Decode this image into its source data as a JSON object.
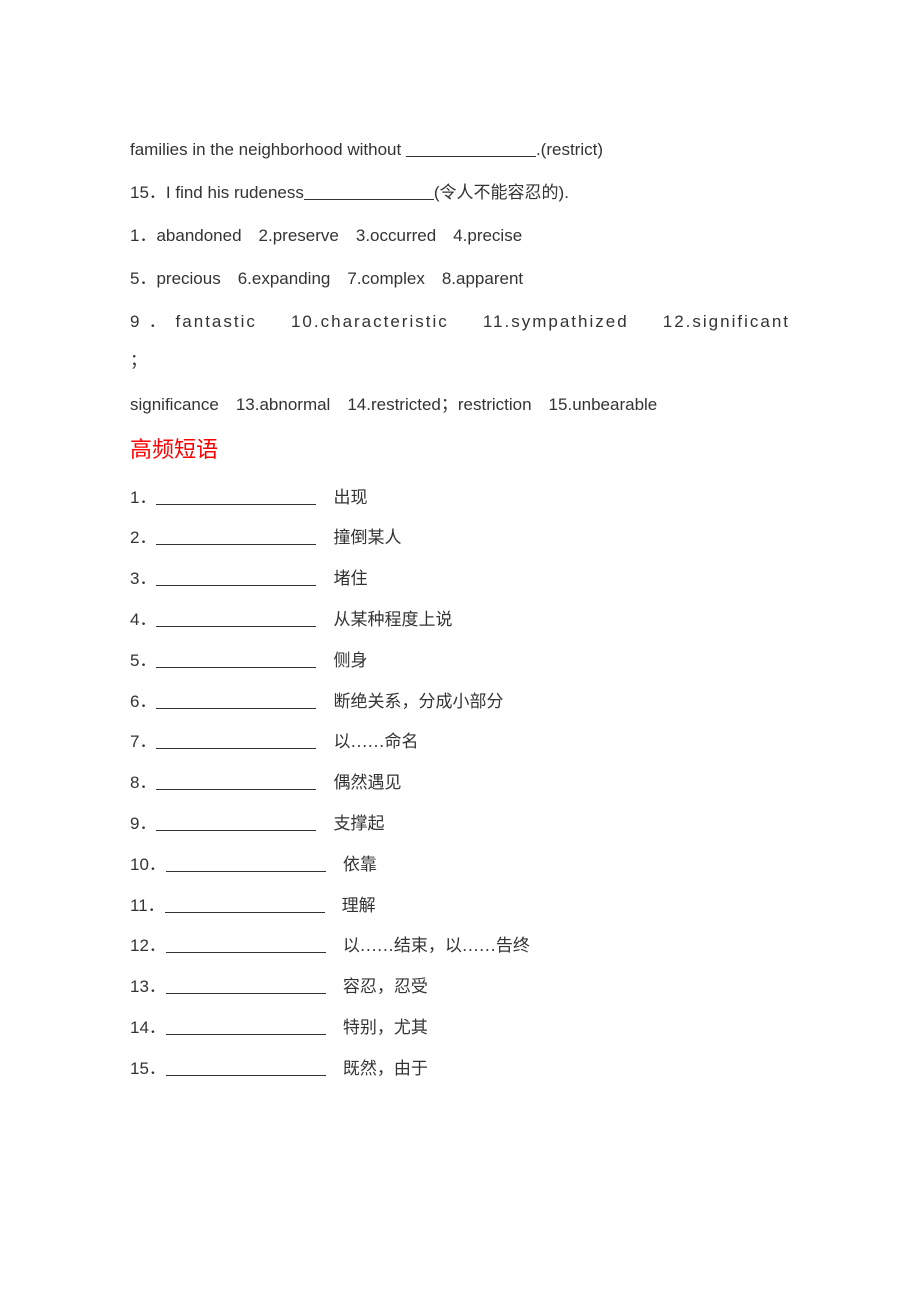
{
  "colors": {
    "text": "#333333",
    "sectionTitle": "#ff0000",
    "background": "#ffffff"
  },
  "typography": {
    "bodyFontSize": 17,
    "titleFontSize": 22,
    "lineHeight": 2.3
  },
  "topParagraphs": {
    "line1_prefix": "families in the neighborhood without ",
    "line1_suffix": ".(restrict)",
    "line2_prefix": "15．I find his rudeness",
    "line2_suffix": "(令人不能容忍的).",
    "answers1": "1．abandoned　2.preserve　3.occurred　4.precise",
    "answers2": "5．precious　6.expanding　7.complex　8.apparent",
    "answers3": "9 ． fantastic 　 10.characteristic 　 11.sympathized 　 12.significant ；",
    "answers4": "significance　13.abnormal　14.restricted；restriction　15.unbearable"
  },
  "sectionTitle": "高频短语",
  "phraseItems": [
    {
      "num": "1．",
      "cn": "　出现"
    },
    {
      "num": "2．",
      "cn": "　撞倒某人"
    },
    {
      "num": "3．",
      "cn": "　堵住"
    },
    {
      "num": "4．",
      "cn": "　从某种程度上说"
    },
    {
      "num": "5．",
      "cn": "　侧身"
    },
    {
      "num": "6．",
      "cn": "　断绝关系，分成小部分"
    },
    {
      "num": "7．",
      "cn": "　以……命名"
    },
    {
      "num": "8．",
      "cn": "　偶然遇见"
    },
    {
      "num": "9．",
      "cn": "　支撑起"
    },
    {
      "num": "10．",
      "cn": "　依靠"
    },
    {
      "num": "11．",
      "cn": "　理解"
    },
    {
      "num": "12．",
      "cn": "　以……结束，以……告终"
    },
    {
      "num": "13．",
      "cn": "　容忍，忍受"
    },
    {
      "num": "14．",
      "cn": "　特别，尤其"
    },
    {
      "num": "15．",
      "cn": "　既然，由于"
    }
  ]
}
